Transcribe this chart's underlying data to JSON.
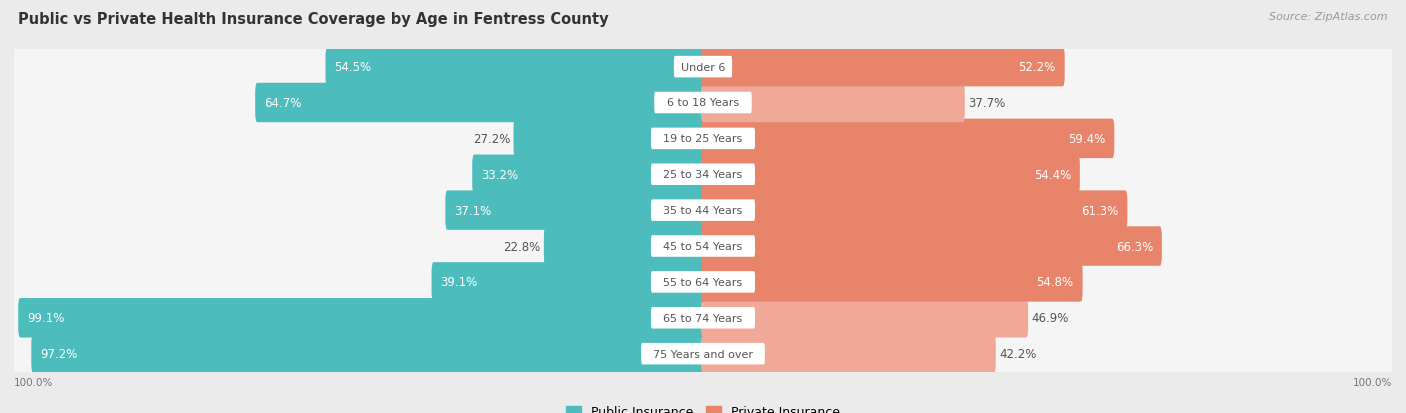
{
  "title": "Public vs Private Health Insurance Coverage by Age in Fentress County",
  "source": "Source: ZipAtlas.com",
  "categories": [
    "Under 6",
    "6 to 18 Years",
    "19 to 25 Years",
    "25 to 34 Years",
    "35 to 44 Years",
    "45 to 54 Years",
    "55 to 64 Years",
    "65 to 74 Years",
    "75 Years and over"
  ],
  "public_values": [
    54.5,
    64.7,
    27.2,
    33.2,
    37.1,
    22.8,
    39.1,
    99.1,
    97.2
  ],
  "private_values": [
    52.2,
    37.7,
    59.4,
    54.4,
    61.3,
    66.3,
    54.8,
    46.9,
    42.2
  ],
  "public_color": "#4DBCBC",
  "private_color": "#E8846A",
  "private_color_light": "#F0A898",
  "background_color": "#EBEBEB",
  "row_bg_color": "#F5F5F5",
  "bar_height": 0.58,
  "max_value": 100.0,
  "title_fontsize": 10.5,
  "label_fontsize": 8.5,
  "category_fontsize": 8.0,
  "legend_fontsize": 9,
  "source_fontsize": 8,
  "axis_label_fontsize": 7.5
}
